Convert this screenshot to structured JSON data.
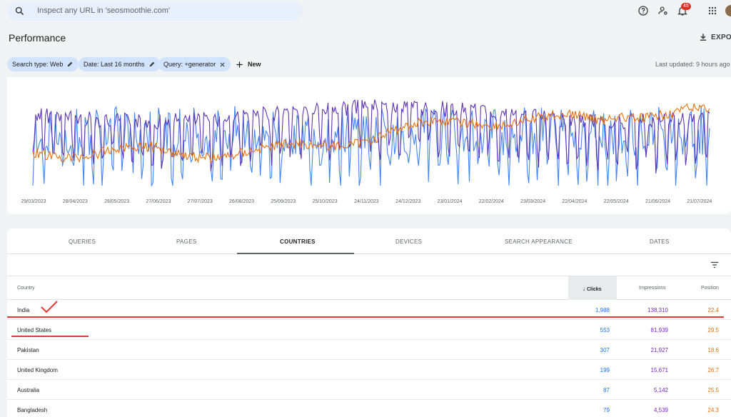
{
  "search": {
    "placeholder": "Inspect any URL in 'seosmoothie.com'"
  },
  "header": {
    "notification_count": "45"
  },
  "page": {
    "title": "Performance",
    "export_label": "EXPORT",
    "last_updated": "Last updated: 9 hours ago"
  },
  "filters": [
    {
      "label": "Search type: Web"
    },
    {
      "label": "Date: Last 16 months"
    },
    {
      "label": "Query: +generator"
    }
  ],
  "new_label": "New",
  "chart_data": {
    "type": "line",
    "x_tick_labels": [
      "29/03/2023",
      "28/04/2023",
      "28/05/2023",
      "27/06/2023",
      "27/07/2023",
      "26/08/2023",
      "25/09/2023",
      "25/10/2023",
      "24/11/2023",
      "24/12/2023",
      "23/01/2024",
      "22/02/2024",
      "23/03/2024",
      "22/04/2024",
      "22/05/2024",
      "21/06/2024",
      "21/07/2024"
    ],
    "series_colors": {
      "impressions": "#5e35b1",
      "position": "#e8710a",
      "clicks": "#4285f4"
    },
    "grid": false
  },
  "tabs": [
    {
      "label": "QUERIES"
    },
    {
      "label": "PAGES"
    },
    {
      "label": "COUNTRIES",
      "active": true
    },
    {
      "label": "DEVICES"
    },
    {
      "label": "SEARCH APPEARANCE"
    },
    {
      "label": "DATES"
    }
  ],
  "table": {
    "headers": {
      "country": "Country",
      "clicks": "Clicks",
      "impressions": "Impressions",
      "position": "Position"
    },
    "rows": [
      {
        "country": "India",
        "clicks": "1,988",
        "impressions": "138,310",
        "position": "22.4"
      },
      {
        "country": "United States",
        "clicks": "553",
        "impressions": "81,939",
        "position": "29.5"
      },
      {
        "country": "Pakistan",
        "clicks": "307",
        "impressions": "21,927",
        "position": "18.6"
      },
      {
        "country": "United Kingdom",
        "clicks": "199",
        "impressions": "15,671",
        "position": "26.7"
      },
      {
        "country": "Australia",
        "clicks": "87",
        "impressions": "5,142",
        "position": "25.5"
      },
      {
        "country": "Bangladesh",
        "clicks": "79",
        "impressions": "4,539",
        "position": "24.3"
      }
    ]
  }
}
